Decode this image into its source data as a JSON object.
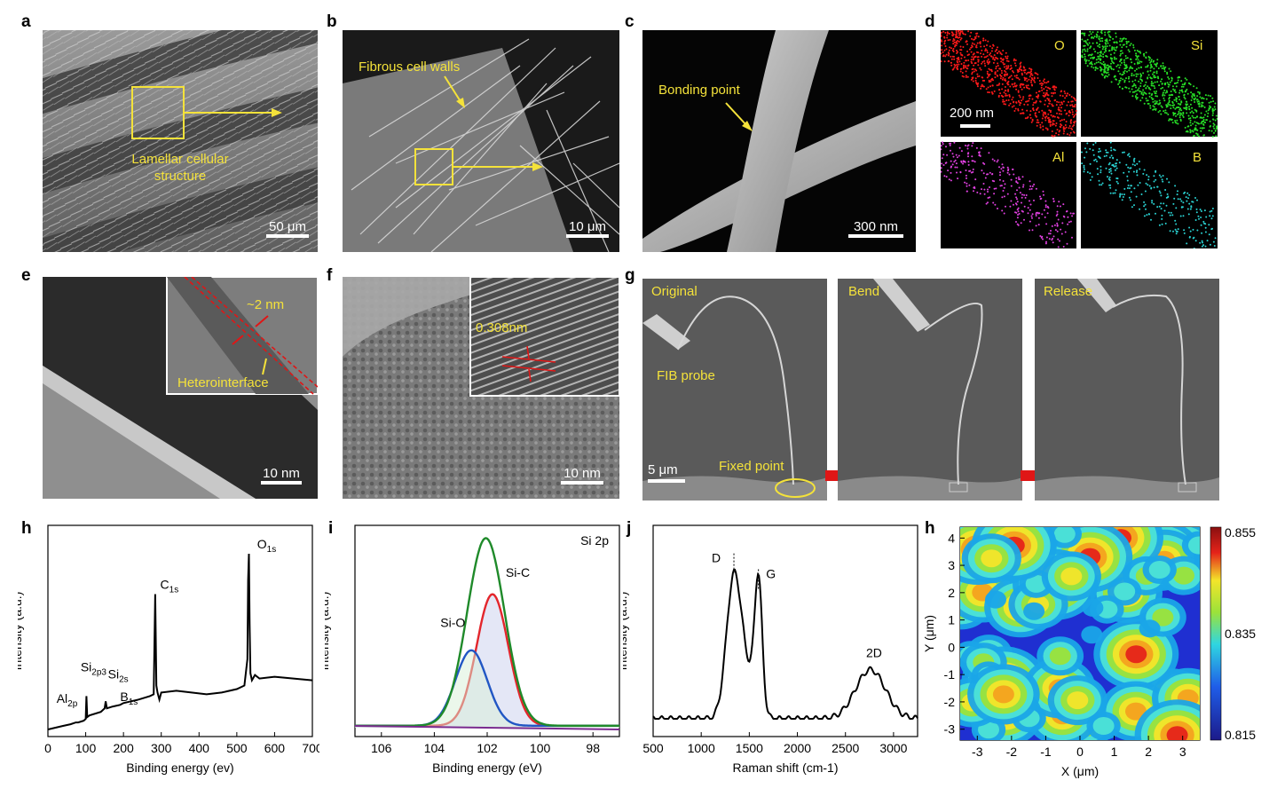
{
  "panel_labels": {
    "a": "a",
    "b": "b",
    "c": "c",
    "d": "d",
    "e": "e",
    "f": "f",
    "g": "g",
    "h": "h",
    "i": "i",
    "j": "j",
    "h2": "h"
  },
  "panel_a": {
    "annotation_line1": "Lamellar cellular",
    "annotation_line2": "structure",
    "scale": "50 μm"
  },
  "panel_b": {
    "annotation": "Fibrous cell walls",
    "scale": "10 μm"
  },
  "panel_c": {
    "annotation": "Bonding point",
    "scale": "300 nm"
  },
  "panel_d": {
    "elements": [
      "O",
      "Si",
      "Al",
      "B"
    ],
    "scale": "200 nm",
    "colors": [
      "#ff1a1a",
      "#27e027",
      "#e040e0",
      "#2ad3d3"
    ]
  },
  "panel_e": {
    "inset_thickness": "~2 nm",
    "inset_label": "Heterointerface",
    "scale": "10 nm"
  },
  "panel_f": {
    "inset_spacing": "0.308nm",
    "scale": "10 nm"
  },
  "panel_g": {
    "frames": [
      "Original",
      "Bend",
      "Release"
    ],
    "probe": "FIB probe",
    "fixed": "Fixed point",
    "scale": "5 μm"
  },
  "chart_data": [
    {
      "type": "line",
      "panel": "h",
      "xlabel": "Binding energy (ev)",
      "ylabel": "Intensity (a.u.)",
      "xlim": [
        0,
        700
      ],
      "xticks": [
        "0",
        "100",
        "200",
        "300",
        "400",
        "500",
        "600",
        "700"
      ],
      "peaks": [
        {
          "label": "Al",
          "sub": "2p",
          "x": 74,
          "y": 0.03
        },
        {
          "label": "Si",
          "sub": "2p3",
          "x": 102,
          "y": 0.19
        },
        {
          "label": "Si",
          "sub": "2s",
          "x": 153,
          "y": 0.16
        },
        {
          "label": "B",
          "sub": "1s",
          "x": 191,
          "y": 0.08
        },
        {
          "label": "C",
          "sub": "1s",
          "x": 284,
          "y": 0.77
        },
        {
          "label": "O",
          "sub": "1s",
          "x": 532,
          "y": 1.0
        }
      ],
      "series": [
        {
          "x": [
            0,
            20,
            40,
            60,
            74,
            80,
            95,
            100,
            102,
            104,
            110,
            140,
            150,
            153,
            156,
            170,
            191,
            200,
            240,
            270,
            280,
            282,
            284,
            287,
            290,
            295,
            300,
            340,
            380,
            420,
            460,
            500,
            520,
            528,
            530,
            532,
            534,
            536,
            540,
            548,
            560,
            600,
            650,
            700
          ],
          "y": [
            0.0,
            0.01,
            0.02,
            0.03,
            0.04,
            0.04,
            0.05,
            0.06,
            0.19,
            0.07,
            0.08,
            0.1,
            0.12,
            0.16,
            0.12,
            0.13,
            0.14,
            0.15,
            0.17,
            0.19,
            0.2,
            0.5,
            0.77,
            0.25,
            0.21,
            0.17,
            0.21,
            0.22,
            0.21,
            0.2,
            0.21,
            0.23,
            0.25,
            0.4,
            0.85,
            1.0,
            0.6,
            0.32,
            0.28,
            0.31,
            0.29,
            0.3,
            0.29,
            0.28
          ]
        }
      ]
    },
    {
      "type": "line",
      "panel": "i",
      "title": "Si 2p",
      "xlabel": "Binding energy (eV)",
      "ylabel": "Intensity (a.u.)",
      "xlim": [
        107,
        97
      ],
      "xticks": [
        "106",
        "104",
        "102",
        "100",
        "98"
      ],
      "series": [
        {
          "name": "Si-C",
          "center": 101.8,
          "height": 0.68,
          "width": 0.85,
          "color": "#e3262c"
        },
        {
          "name": "Si-O",
          "center": 102.6,
          "height": 0.39,
          "width": 0.85,
          "color": "#2156c4"
        },
        {
          "name": "",
          "center": 102.05,
          "height": 0.97,
          "width": 1.0,
          "color": "#1f8a2a"
        }
      ]
    },
    {
      "type": "line",
      "panel": "j",
      "xlabel": "Raman shift (cm-1)",
      "ylabel": "Intensity (a.u.)",
      "xlim": [
        500,
        3250
      ],
      "xticks": [
        "500",
        "1000",
        "1500",
        "2000",
        "2500",
        "3000"
      ],
      "peaks": [
        {
          "label": "D",
          "x": 1340,
          "y": 0.83
        },
        {
          "label": "G",
          "x": 1595,
          "y": 0.74
        },
        {
          "label": "2D",
          "x": 2760,
          "y": 0.29
        }
      ]
    },
    {
      "type": "heatmap",
      "panel": "h2",
      "xlabel": "X (μm)",
      "ylabel": "Y (μm)",
      "xlim": [
        -3.5,
        3.5
      ],
      "ylim": [
        -3.4,
        4.4
      ],
      "xticks": [
        "-3",
        "-2",
        "-1",
        "0",
        "1",
        "2",
        "3"
      ],
      "yticks": [
        "4",
        "3",
        "2",
        "1",
        "0",
        "-1",
        "-2",
        "-3"
      ],
      "colorbar": {
        "min": 0.815,
        "max": 0.855,
        "ticks": [
          "0.855",
          "0.835",
          "0.815"
        ]
      }
    }
  ]
}
